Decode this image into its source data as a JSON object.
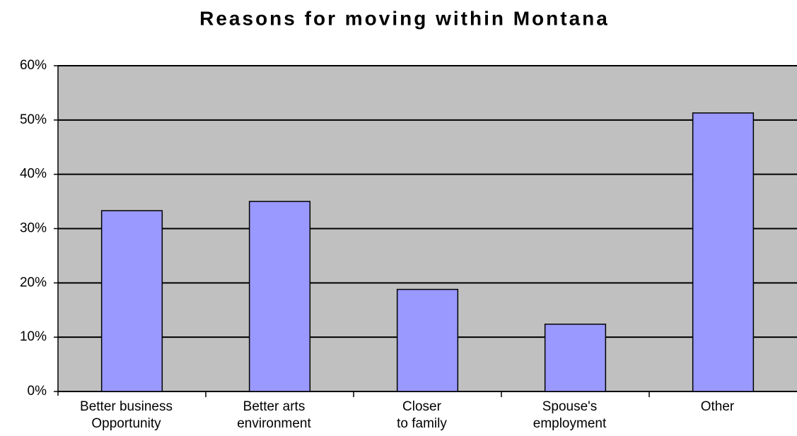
{
  "chart_data": {
    "type": "bar",
    "title": "Reasons for moving within Montana",
    "categories": [
      [
        "Better business",
        "Opportunity"
      ],
      [
        "Better arts",
        "environment"
      ],
      [
        "Closer",
        "to family"
      ],
      [
        "Spouse's",
        "employment"
      ],
      [
        "Other"
      ]
    ],
    "values": [
      33.3,
      35,
      18.8,
      12.4,
      51.3
    ],
    "color": "#9999ff",
    "ylim": [
      0,
      60
    ],
    "yticks": [
      {
        "value": 0,
        "label": "0%"
      },
      {
        "value": 10,
        "label": "10%"
      },
      {
        "value": 20,
        "label": "20%"
      },
      {
        "value": 30,
        "label": "30%"
      },
      {
        "value": 40,
        "label": "40%"
      },
      {
        "value": 50,
        "label": "50%"
      },
      {
        "value": 60,
        "label": "60%"
      }
    ],
    "grid": true
  }
}
